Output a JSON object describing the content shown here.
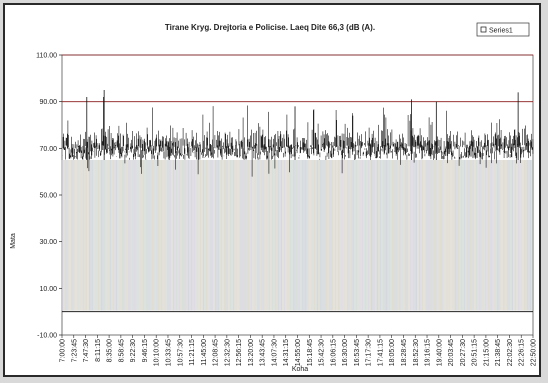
{
  "chart_data": {
    "type": "line",
    "title": "Tirane Kryg. Drejtoria e Policise. Laeq Dite 66,3 (dB (A).",
    "xlabel": "Koha",
    "ylabel": "Mata",
    "ylim": [
      -10,
      110
    ],
    "y_ticks": [
      "110.00",
      "90.00",
      "70.00",
      "50.00",
      "30.00",
      "10.00",
      "-10.00"
    ],
    "x_ticks": [
      "7:00:00",
      "7:23:45",
      "7:47:30",
      "8:11:15",
      "8:35:00",
      "8:58:45",
      "9:22:30",
      "9:46:15",
      "10:10:00",
      "10:33:45",
      "10:57:30",
      "11:21:15",
      "11:45:00",
      "12:08:45",
      "12:32:30",
      "12:56:15",
      "13:20:00",
      "13:43:45",
      "14:07:30",
      "14:31:15",
      "14:55:00",
      "15:18:45",
      "15:42:30",
      "16:06:15",
      "16:30:00",
      "16:53:45",
      "17:17:30",
      "17:41:15",
      "18:05:00",
      "18:28:45",
      "18:52:30",
      "19:16:15",
      "19:40:00",
      "20:03:45",
      "20:27:30",
      "20:51:15",
      "21:15:00",
      "21:38:45",
      "22:02:30",
      "22:26:15",
      "22:50:00"
    ],
    "reference_lines": [
      110,
      90,
      0
    ],
    "band_low": 65,
    "band_high": 73,
    "spike_max": 97,
    "dip_min": 42,
    "spikes": [
      {
        "x": "7:50:00",
        "y": 92
      },
      {
        "x": "8:25:00",
        "y": 95
      },
      {
        "x": "14:50:00",
        "y": 88
      },
      {
        "x": "18:45:00",
        "y": 91
      },
      {
        "x": "19:35:00",
        "y": 90
      },
      {
        "x": "22:20:00",
        "y": 94
      }
    ],
    "series": [
      {
        "name": "Series1"
      }
    ],
    "legend_position": "top-right",
    "colors": {
      "series": "#111111",
      "reference": "#8b1a1a",
      "background": "#ffffff"
    },
    "grid": false
  }
}
